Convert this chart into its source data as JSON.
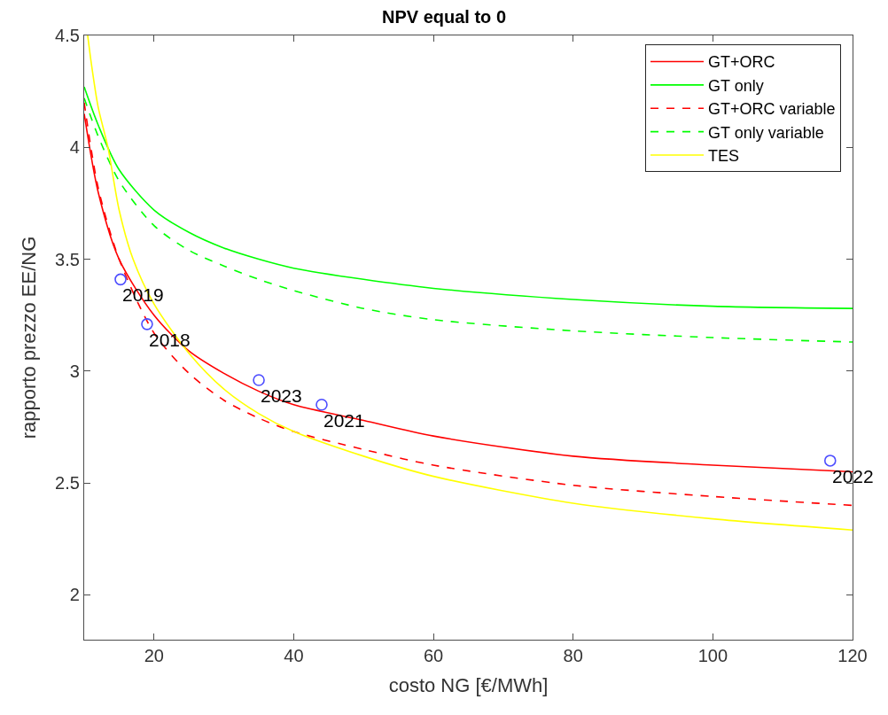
{
  "chart_data": {
    "type": "line",
    "title": "NPV equal to 0",
    "xlabel": "costo NG [€/MWh]",
    "ylabel": "rapporto prezzo EE/NG",
    "xlim": [
      10,
      120
    ],
    "xticks": [
      20,
      40,
      60,
      80,
      100,
      120
    ],
    "ylim": [
      1.8,
      4.5
    ],
    "yticks": [
      2,
      2.5,
      3,
      3.5,
      4,
      4.5
    ],
    "legend": "top right",
    "x": [
      10,
      12,
      15,
      20,
      25,
      30,
      35,
      40,
      50,
      60,
      80,
      100,
      120
    ],
    "series": [
      {
        "name": "GT+ORC",
        "color": "#ff0000",
        "line_style": "solid",
        "values": [
          4.15,
          3.8,
          3.5,
          3.25,
          3.09,
          2.99,
          2.91,
          2.85,
          2.78,
          2.71,
          2.62,
          2.58,
          2.55
        ]
      },
      {
        "name": "GT only",
        "color": "#00ff00",
        "line_style": "solid",
        "values": [
          4.27,
          4.1,
          3.9,
          3.72,
          3.62,
          3.55,
          3.5,
          3.46,
          3.41,
          3.37,
          3.32,
          3.29,
          3.28
        ]
      },
      {
        "name": "GT+ORC variable",
        "color": "#ff0000",
        "line_style": "dashed",
        "values": [
          4.2,
          3.82,
          3.5,
          3.17,
          2.99,
          2.87,
          2.79,
          2.73,
          2.65,
          2.58,
          2.49,
          2.44,
          2.4
        ]
      },
      {
        "name": "GT only variable",
        "color": "#00ff00",
        "line_style": "dashed",
        "values": [
          4.22,
          4.05,
          3.85,
          3.65,
          3.54,
          3.47,
          3.41,
          3.36,
          3.28,
          3.23,
          3.18,
          3.15,
          3.13
        ]
      },
      {
        "name": "TES",
        "color": "#ffff00",
        "line_style": "solid",
        "x": [
          10.5,
          11,
          12,
          13.4,
          15,
          17,
          20,
          25,
          30,
          35,
          40,
          50,
          60,
          80,
          100,
          120
        ],
        "values": [
          4.5,
          4.38,
          4.18,
          4.0,
          3.72,
          3.5,
          3.3,
          3.08,
          2.92,
          2.81,
          2.73,
          2.62,
          2.53,
          2.41,
          2.34,
          2.29
        ]
      },
      {
        "type": "scatter",
        "marker": "circle",
        "color": "#4d4dff",
        "x": [
          15.2,
          19.0,
          35.0,
          44.0,
          116.8
        ],
        "values": [
          3.41,
          3.21,
          2.96,
          2.85,
          2.6
        ]
      }
    ],
    "annotations": [
      {
        "text": "2019",
        "x": 15.2,
        "y": 3.41
      },
      {
        "text": "2018",
        "x": 19.0,
        "y": 3.21
      },
      {
        "text": "2023",
        "x": 35.0,
        "y": 2.96
      },
      {
        "text": "2021",
        "x": 44.0,
        "y": 2.85
      },
      {
        "text": "2022",
        "x": 116.8,
        "y": 2.6
      }
    ]
  }
}
